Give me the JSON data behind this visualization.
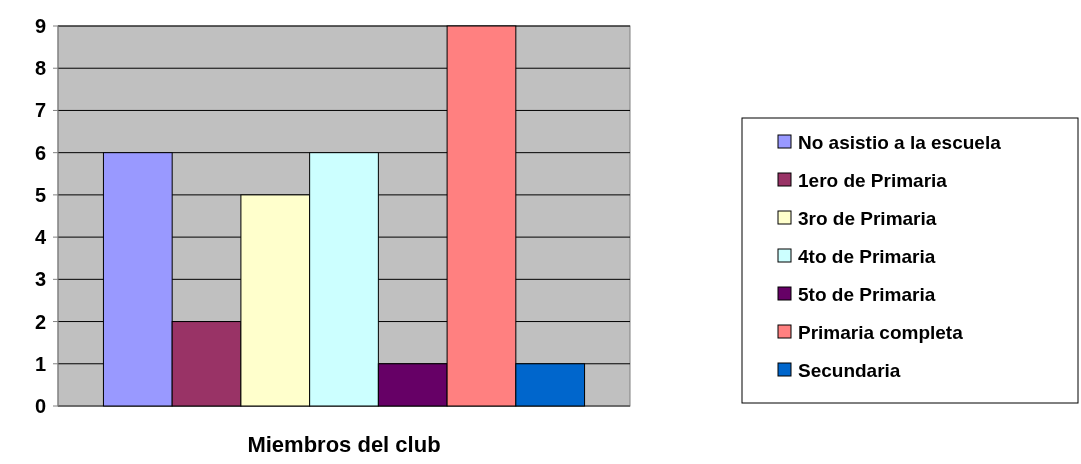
{
  "chart_data": {
    "type": "bar",
    "categories": [
      "Miembros del club"
    ],
    "series": [
      {
        "name": "No asistio a la escuela",
        "color": "#9999ff",
        "values": [
          6
        ]
      },
      {
        "name": "1ero de Primaria",
        "color": "#993366",
        "values": [
          2
        ]
      },
      {
        "name": "3ro de Primaria",
        "color": "#ffffcc",
        "values": [
          5
        ]
      },
      {
        "name": "4to de Primaria",
        "color": "#ccffff",
        "values": [
          6
        ]
      },
      {
        "name": "5to de Primaria",
        "color": "#660066",
        "values": [
          1
        ]
      },
      {
        "name": "Primaria completa",
        "color": "#ff8080",
        "values": [
          9
        ]
      },
      {
        "name": "Secundaria",
        "color": "#0066cc",
        "values": [
          1
        ]
      }
    ],
    "ylim": [
      0,
      9
    ],
    "yticks": [
      0,
      1,
      2,
      3,
      4,
      5,
      6,
      7,
      8,
      9
    ],
    "grid": "y",
    "legend": "right"
  }
}
